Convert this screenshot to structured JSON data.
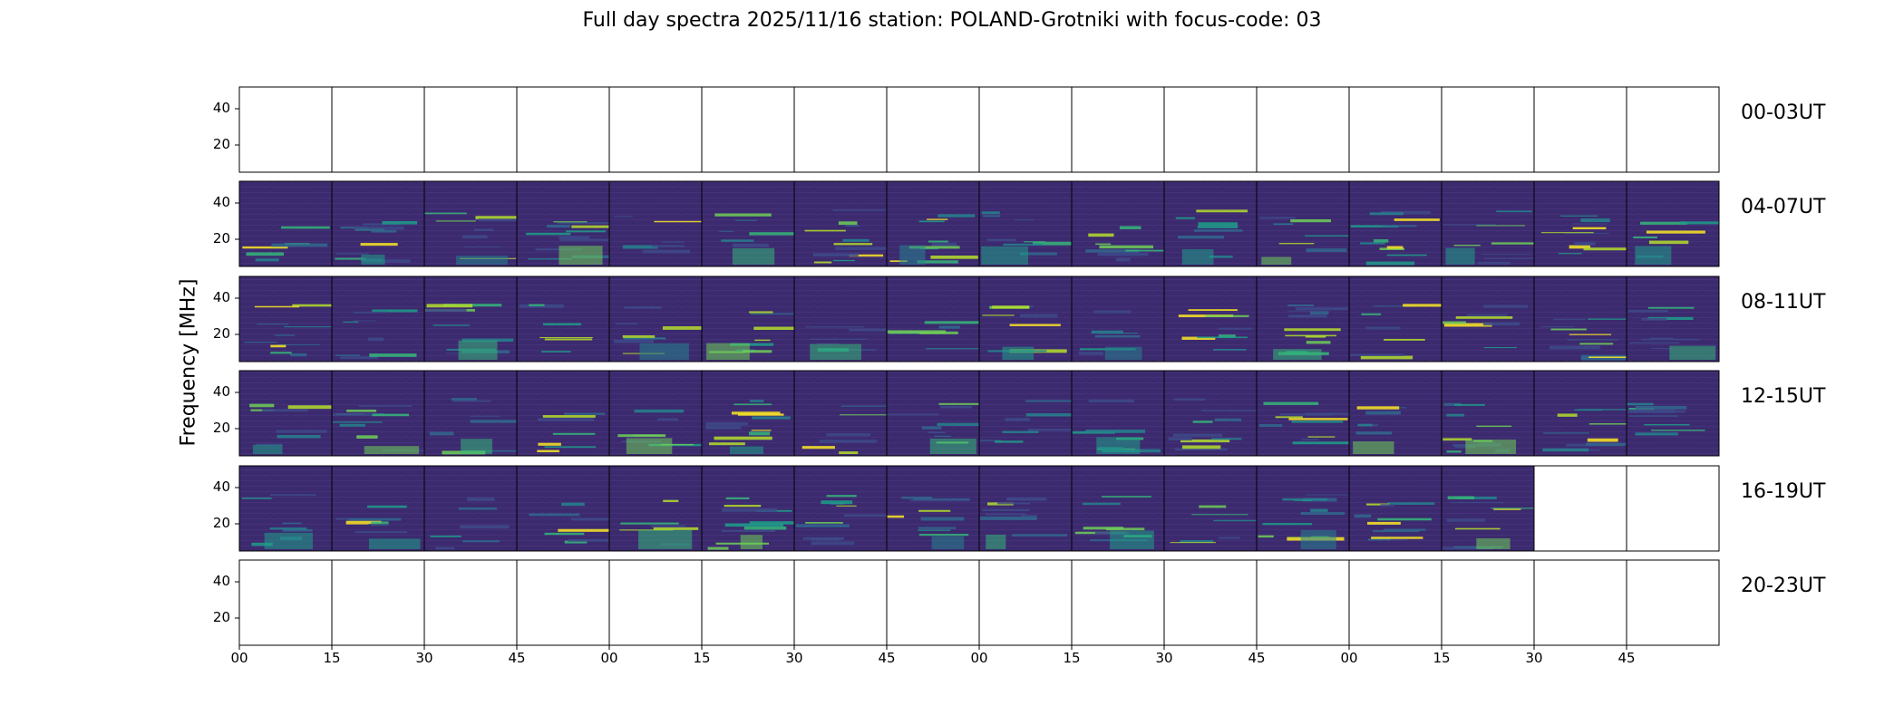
{
  "chart_data": {
    "type": "heatmap",
    "title": "Full day spectra 2025/11/16 station: POLAND-Grotniki with focus-code: 03",
    "ylabel": "Frequency [MHz]",
    "xlabel": "",
    "colormap": "viridis",
    "grid": false,
    "ylim": [
      5,
      52
    ],
    "yticks": [
      20,
      40
    ],
    "xtick_labels": [
      "00",
      "15",
      "30",
      "45",
      "00",
      "15",
      "30",
      "45",
      "00",
      "15",
      "30",
      "45",
      "00",
      "15",
      "30",
      "45"
    ],
    "panels_per_row": 16,
    "panel_minutes": 15,
    "rows": [
      {
        "label": "00-03UT",
        "filled_panels": 0
      },
      {
        "label": "04-07UT",
        "filled_panels": 16
      },
      {
        "label": "08-11UT",
        "filled_panels": 16
      },
      {
        "label": "12-15UT",
        "filled_panels": 16
      },
      {
        "label": "16-19UT",
        "filled_panels": 14
      },
      {
        "label": "20-23UT",
        "filled_panels": 0
      }
    ],
    "colors": {
      "low": "#3b2a6e",
      "mid": "#21918c",
      "high": "#fde725",
      "frame": "#000000",
      "background": "#ffffff"
    }
  }
}
